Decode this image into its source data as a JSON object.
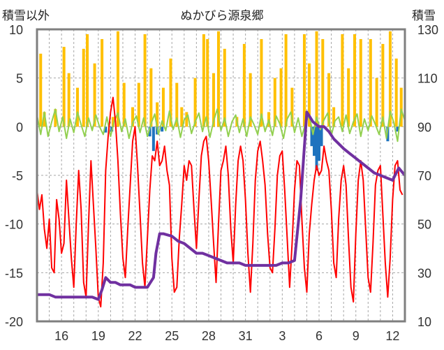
{
  "chart_data": {
    "type": "line",
    "title": "ぬかびら源泉郷",
    "left_axis_label": "積雪以外",
    "right_axis_label": "積雪",
    "left_axis": {
      "ylim": [
        -20,
        10
      ],
      "ticks": [
        10,
        5,
        0,
        -5,
        -10,
        -15,
        -20
      ]
    },
    "right_axis": {
      "ylim": [
        10,
        130
      ],
      "ticks": [
        130,
        110,
        90,
        70,
        50,
        30,
        10
      ]
    },
    "x_ticks": [
      "16",
      "19",
      "22",
      "25",
      "28",
      "31",
      "3",
      "6",
      "9",
      "12"
    ],
    "grid": "dashed vertical lines every day; dashed horizontal lines at left-axis ticks",
    "series": [
      {
        "kind": "precipitation-bars",
        "color": "#FFC000",
        "axis": "left",
        "values": [
          [
            14.3,
            7.5
          ],
          [
            14.6,
            1.5
          ],
          [
            15.5,
            1.8
          ],
          [
            16.2,
            8.2
          ],
          [
            16.6,
            5.5
          ],
          [
            17.3,
            4.0
          ],
          [
            17.8,
            8.0
          ],
          [
            18.1,
            9.5
          ],
          [
            18.7,
            6.5
          ],
          [
            19.3,
            9.0
          ],
          [
            20.2,
            1.0
          ],
          [
            20.6,
            9.8
          ],
          [
            21.1,
            4.5
          ],
          [
            21.8,
            2.0
          ],
          [
            22.3,
            4.5
          ],
          [
            22.8,
            9.5
          ],
          [
            23.3,
            6.0
          ],
          [
            23.8,
            2.5
          ],
          [
            24.3,
            4.0
          ],
          [
            24.9,
            7.0
          ],
          [
            25.4,
            4.5
          ],
          [
            25.8,
            2.0
          ],
          [
            26.2,
            1.5
          ],
          [
            26.9,
            5.0
          ],
          [
            27.6,
            9.5
          ],
          [
            27.9,
            9.0
          ],
          [
            28.4,
            5.5
          ],
          [
            28.8,
            9.8
          ],
          [
            29.3,
            8.0
          ],
          [
            30.3,
            1.0
          ],
          [
            30.9,
            8.5
          ],
          [
            31.4,
            5.5
          ],
          [
            32.3,
            9.0
          ],
          [
            32.9,
            1.5
          ],
          [
            33.4,
            5.0
          ],
          [
            33.9,
            6.0
          ],
          [
            34.3,
            9.5
          ],
          [
            34.8,
            4.0
          ],
          [
            35.8,
            9.5
          ],
          [
            36.2,
            6.5
          ],
          [
            36.8,
            9.8
          ],
          [
            37.3,
            9.0
          ],
          [
            37.8,
            5.5
          ],
          [
            38.2,
            2.0
          ],
          [
            38.9,
            9.5
          ],
          [
            39.4,
            6.0
          ],
          [
            39.9,
            9.5
          ],
          [
            40.4,
            9.0
          ],
          [
            41.2,
            9.0
          ],
          [
            41.7,
            5.0
          ],
          [
            42.2,
            8.5
          ],
          [
            42.8,
            9.8
          ],
          [
            43.3,
            7.0
          ],
          [
            43.7,
            4.0
          ]
        ]
      },
      {
        "kind": "negative-bars",
        "color": "#1E73BE",
        "axis": "left",
        "values": [
          [
            19.6,
            -0.6
          ],
          [
            20.1,
            -0.5
          ],
          [
            23.2,
            -1.0
          ],
          [
            23.5,
            -2.5
          ],
          [
            23.8,
            -0.8
          ],
          [
            24.2,
            -0.5
          ],
          [
            36.4,
            -2.0
          ],
          [
            36.6,
            -3.0
          ],
          [
            36.8,
            -4.5
          ],
          [
            37.0,
            -3.5
          ],
          [
            37.2,
            -2.0
          ],
          [
            42.6,
            -1.5
          ],
          [
            43.4,
            -0.5
          ]
        ]
      },
      {
        "kind": "line",
        "color": "#92D050",
        "axis": "left",
        "x": [
          14.0,
          14.3,
          14.6,
          14.9,
          15.2,
          15.5,
          15.8,
          16.1,
          16.4,
          16.7,
          17.0,
          17.3,
          17.6,
          17.9,
          18.2,
          18.5,
          18.8,
          19.1,
          19.4,
          19.7,
          20.0,
          20.3,
          20.6,
          20.9,
          21.2,
          21.5,
          21.8,
          22.1,
          22.4,
          22.7,
          23.0,
          23.3,
          23.6,
          23.9,
          24.2,
          24.5,
          24.8,
          25.1,
          25.4,
          25.7,
          26.0,
          26.3,
          26.6,
          26.9,
          27.2,
          27.5,
          27.8,
          28.1,
          28.4,
          28.7,
          29.0,
          29.3,
          29.6,
          29.9,
          30.2,
          30.5,
          30.8,
          31.1,
          31.4,
          31.7,
          32.0,
          32.3,
          32.6,
          32.9,
          33.2,
          33.5,
          33.8,
          34.1,
          34.4,
          34.7,
          35.0,
          35.3,
          35.6,
          35.9,
          36.2,
          36.5,
          36.8,
          37.1,
          37.4,
          37.7,
          38.0,
          38.3,
          38.6,
          38.9,
          39.2,
          39.5,
          39.8,
          40.1,
          40.4,
          40.7,
          41.0,
          41.3,
          41.6,
          41.9,
          42.2,
          42.5,
          42.8,
          43.1,
          43.4,
          43.7,
          44.0
        ],
        "y": [
          1.2,
          -0.8,
          1.5,
          -1.0,
          0.5,
          1.8,
          -0.5,
          1.0,
          -1.2,
          0.8,
          -0.6,
          1.5,
          0.2,
          -1.0,
          0.9,
          -0.4,
          1.2,
          0.0,
          -0.8,
          1.0,
          -1.0,
          0.6,
          1.4,
          -0.5,
          0.8,
          -1.2,
          0.4,
          1.1,
          -0.6,
          0.9,
          -1.0,
          0.3,
          1.3,
          -0.8,
          0.6,
          -0.4,
          1.6,
          -0.3,
          0.9,
          -1.1,
          0.7,
          1.2,
          -0.7,
          0.5,
          1.4,
          -0.5,
          1.0,
          -1.1,
          0.6,
          1.8,
          -0.4,
          0.9,
          -1.0,
          0.5,
          1.2,
          -0.6,
          0.8,
          -1.0,
          1.0,
          0.2,
          -0.8,
          1.3,
          -0.5,
          0.7,
          -0.9,
          1.1,
          0.3,
          -1.2,
          0.8,
          1.5,
          -0.6,
          0.9,
          -1.0,
          0.4,
          1.2,
          -0.8,
          1.0,
          -0.3,
          0.7,
          1.4,
          -0.9,
          0.6,
          1.0,
          -0.5,
          1.2,
          -0.7,
          0.5,
          1.3,
          -1.0,
          0.8,
          -0.4,
          1.1,
          0.2,
          -0.8,
          1.0,
          -1.2,
          1.6,
          0.4,
          -1.5,
          1.8,
          0.6
        ]
      },
      {
        "kind": "line",
        "color": "#FF0000",
        "axis": "left",
        "x": [
          14.0,
          14.2,
          14.4,
          14.6,
          14.8,
          15.0,
          15.2,
          15.4,
          15.6,
          15.8,
          16.0,
          16.2,
          16.4,
          16.6,
          16.8,
          17.0,
          17.2,
          17.4,
          17.6,
          17.8,
          18.0,
          18.2,
          18.4,
          18.6,
          18.8,
          19.0,
          19.2,
          19.4,
          19.6,
          19.8,
          20.0,
          20.2,
          20.4,
          20.6,
          20.8,
          21.0,
          21.2,
          21.4,
          21.6,
          21.8,
          22.0,
          22.2,
          22.4,
          22.6,
          22.8,
          23.0,
          23.2,
          23.4,
          23.6,
          23.8,
          24.0,
          24.2,
          24.4,
          24.6,
          24.8,
          25.0,
          25.2,
          25.4,
          25.6,
          25.8,
          26.0,
          26.2,
          26.4,
          26.6,
          26.8,
          27.0,
          27.2,
          27.4,
          27.6,
          27.8,
          28.0,
          28.2,
          28.4,
          28.6,
          28.8,
          29.0,
          29.2,
          29.4,
          29.6,
          29.8,
          30.0,
          30.2,
          30.4,
          30.6,
          30.8,
          31.0,
          31.2,
          31.4,
          31.6,
          31.8,
          32.0,
          32.2,
          32.4,
          32.6,
          32.8,
          33.0,
          33.2,
          33.4,
          33.6,
          33.8,
          34.0,
          34.2,
          34.4,
          34.6,
          34.8,
          35.0,
          35.2,
          35.4,
          35.6,
          35.8,
          36.0,
          36.2,
          36.4,
          36.6,
          36.8,
          37.0,
          37.2,
          37.4,
          37.6,
          37.8,
          38.0,
          38.2,
          38.4,
          38.6,
          38.8,
          39.0,
          39.2,
          39.4,
          39.6,
          39.8,
          40.0,
          40.2,
          40.4,
          40.6,
          40.8,
          41.0,
          41.2,
          41.4,
          41.6,
          41.8,
          42.0,
          42.2,
          42.4,
          42.6,
          42.8,
          43.0,
          43.2,
          43.4,
          43.6,
          43.8
        ],
        "y": [
          -6.5,
          -8.5,
          -7.0,
          -10.5,
          -12.5,
          -9.5,
          -14.5,
          -15.0,
          -7.5,
          -9.5,
          -13.0,
          -12.0,
          -5.5,
          -9.5,
          -13.5,
          -16.5,
          -10.0,
          -4.5,
          -8.5,
          -16.0,
          -17.5,
          -10.0,
          -3.5,
          -8.0,
          -12.5,
          -17.5,
          -18.5,
          -14.0,
          -4.5,
          -1.0,
          1.5,
          3.0,
          0.5,
          -3.5,
          -9.0,
          -13.5,
          -15.5,
          -10.5,
          -6.0,
          -1.5,
          0.0,
          -4.0,
          -9.0,
          -14.0,
          -16.5,
          -11.5,
          -6.5,
          -3.0,
          -3.5,
          -1.5,
          -4.0,
          -3.5,
          -2.0,
          -4.5,
          -6.0,
          -13.5,
          -17.0,
          -16.5,
          -11.5,
          -8.0,
          -4.0,
          -5.5,
          -3.5,
          -4.0,
          -8.5,
          -12.5,
          -7.5,
          -3.0,
          -1.5,
          -1.0,
          -3.5,
          -7.5,
          -12.0,
          -16.0,
          -10.0,
          -4.5,
          -3.5,
          -2.0,
          -5.0,
          -10.5,
          -14.0,
          -8.0,
          -3.5,
          -2.0,
          -3.5,
          -7.5,
          -13.0,
          -17.0,
          -12.0,
          -5.5,
          -2.5,
          -1.5,
          -3.5,
          -6.0,
          -11.0,
          -14.5,
          -15.0,
          -10.5,
          -5.0,
          -3.0,
          -2.5,
          -6.5,
          -11.5,
          -16.5,
          -12.0,
          -6.5,
          -3.5,
          -4.0,
          -9.5,
          -14.5,
          -17.0,
          -11.0,
          -8.0,
          -5.5,
          -4.0,
          -5.0,
          -4.5,
          -2.0,
          -3.5,
          -4.5,
          -8.5,
          -14.0,
          -15.5,
          -9.5,
          -5.5,
          -4.0,
          -6.0,
          -11.5,
          -16.5,
          -18.0,
          -11.0,
          -5.5,
          -3.5,
          -5.5,
          -10.5,
          -15.5,
          -17.0,
          -12.0,
          -6.0,
          -4.5,
          -4.0,
          -9.0,
          -14.0,
          -17.5,
          -13.5,
          -7.5,
          -4.0,
          -3.5,
          -6.5,
          -7.0
        ]
      },
      {
        "kind": "step-line",
        "name": "積雪",
        "color": "#7030A0",
        "axis": "right",
        "x": [
          14.0,
          15.0,
          15.5,
          16.5,
          17.0,
          17.5,
          18.0,
          18.5,
          19.0,
          19.3,
          19.6,
          20.0,
          20.4,
          20.8,
          21.2,
          21.6,
          22.0,
          22.5,
          23.0,
          23.5,
          23.7,
          24.0,
          24.3,
          25.0,
          25.5,
          26.0,
          26.5,
          27.0,
          27.5,
          28.0,
          28.5,
          29.0,
          29.5,
          30.0,
          30.5,
          31.0,
          31.5,
          32.0,
          32.5,
          33.0,
          33.5,
          34.0,
          34.5,
          35.0,
          35.5,
          36.0,
          36.5,
          37.0,
          37.4,
          37.8,
          38.2,
          38.6,
          39.0,
          39.5,
          40.0,
          40.5,
          41.0,
          41.5,
          42.0,
          42.5,
          43.0,
          43.5,
          44.0
        ],
        "y": [
          21,
          21,
          20,
          20,
          20,
          20,
          20,
          20,
          19,
          23,
          28,
          26,
          26,
          25,
          25,
          25,
          24,
          24,
          24,
          28,
          38,
          46,
          46,
          45,
          43,
          42,
          40,
          38,
          38,
          37,
          36,
          35,
          34,
          34,
          34,
          33,
          33,
          33,
          33,
          33,
          33,
          34,
          34,
          35,
          60,
          96,
          92,
          90,
          90,
          88,
          85,
          83,
          81,
          79,
          77,
          75,
          73,
          71,
          70,
          69,
          68,
          73,
          70
        ]
      }
    ]
  }
}
